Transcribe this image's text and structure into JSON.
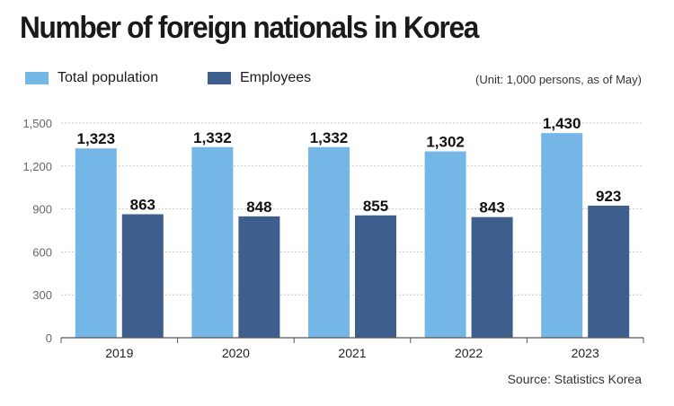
{
  "title": "Number of foreign nationals in Korea",
  "unit_note": "(Unit: 1,000 persons,  as of May)",
  "source": "Source: Statistics Korea",
  "colors": {
    "total_population": "#74b7e6",
    "employees": "#3e5f8d",
    "grid": "#c8c8c8",
    "axis": "#555555"
  },
  "chart_data": {
    "type": "bar",
    "categories": [
      "2019",
      "2020",
      "2021",
      "2022",
      "2023"
    ],
    "series": [
      {
        "name": "Total population",
        "values": [
          1323,
          1332,
          1332,
          1302,
          1430
        ],
        "labels": [
          "1,323",
          "1,332",
          "1,332",
          "1,302",
          "1,430"
        ]
      },
      {
        "name": "Employees",
        "values": [
          863,
          848,
          855,
          843,
          923
        ],
        "labels": [
          "863",
          "848",
          "855",
          "843",
          "923"
        ]
      }
    ],
    "ylim": [
      0,
      1500
    ],
    "yticks": [
      0,
      300,
      600,
      900,
      1200,
      1500
    ],
    "ytick_labels": [
      "0",
      "300",
      "600",
      "900",
      "1,200",
      "1,500"
    ],
    "grid": true,
    "legend_position": "top-left"
  }
}
